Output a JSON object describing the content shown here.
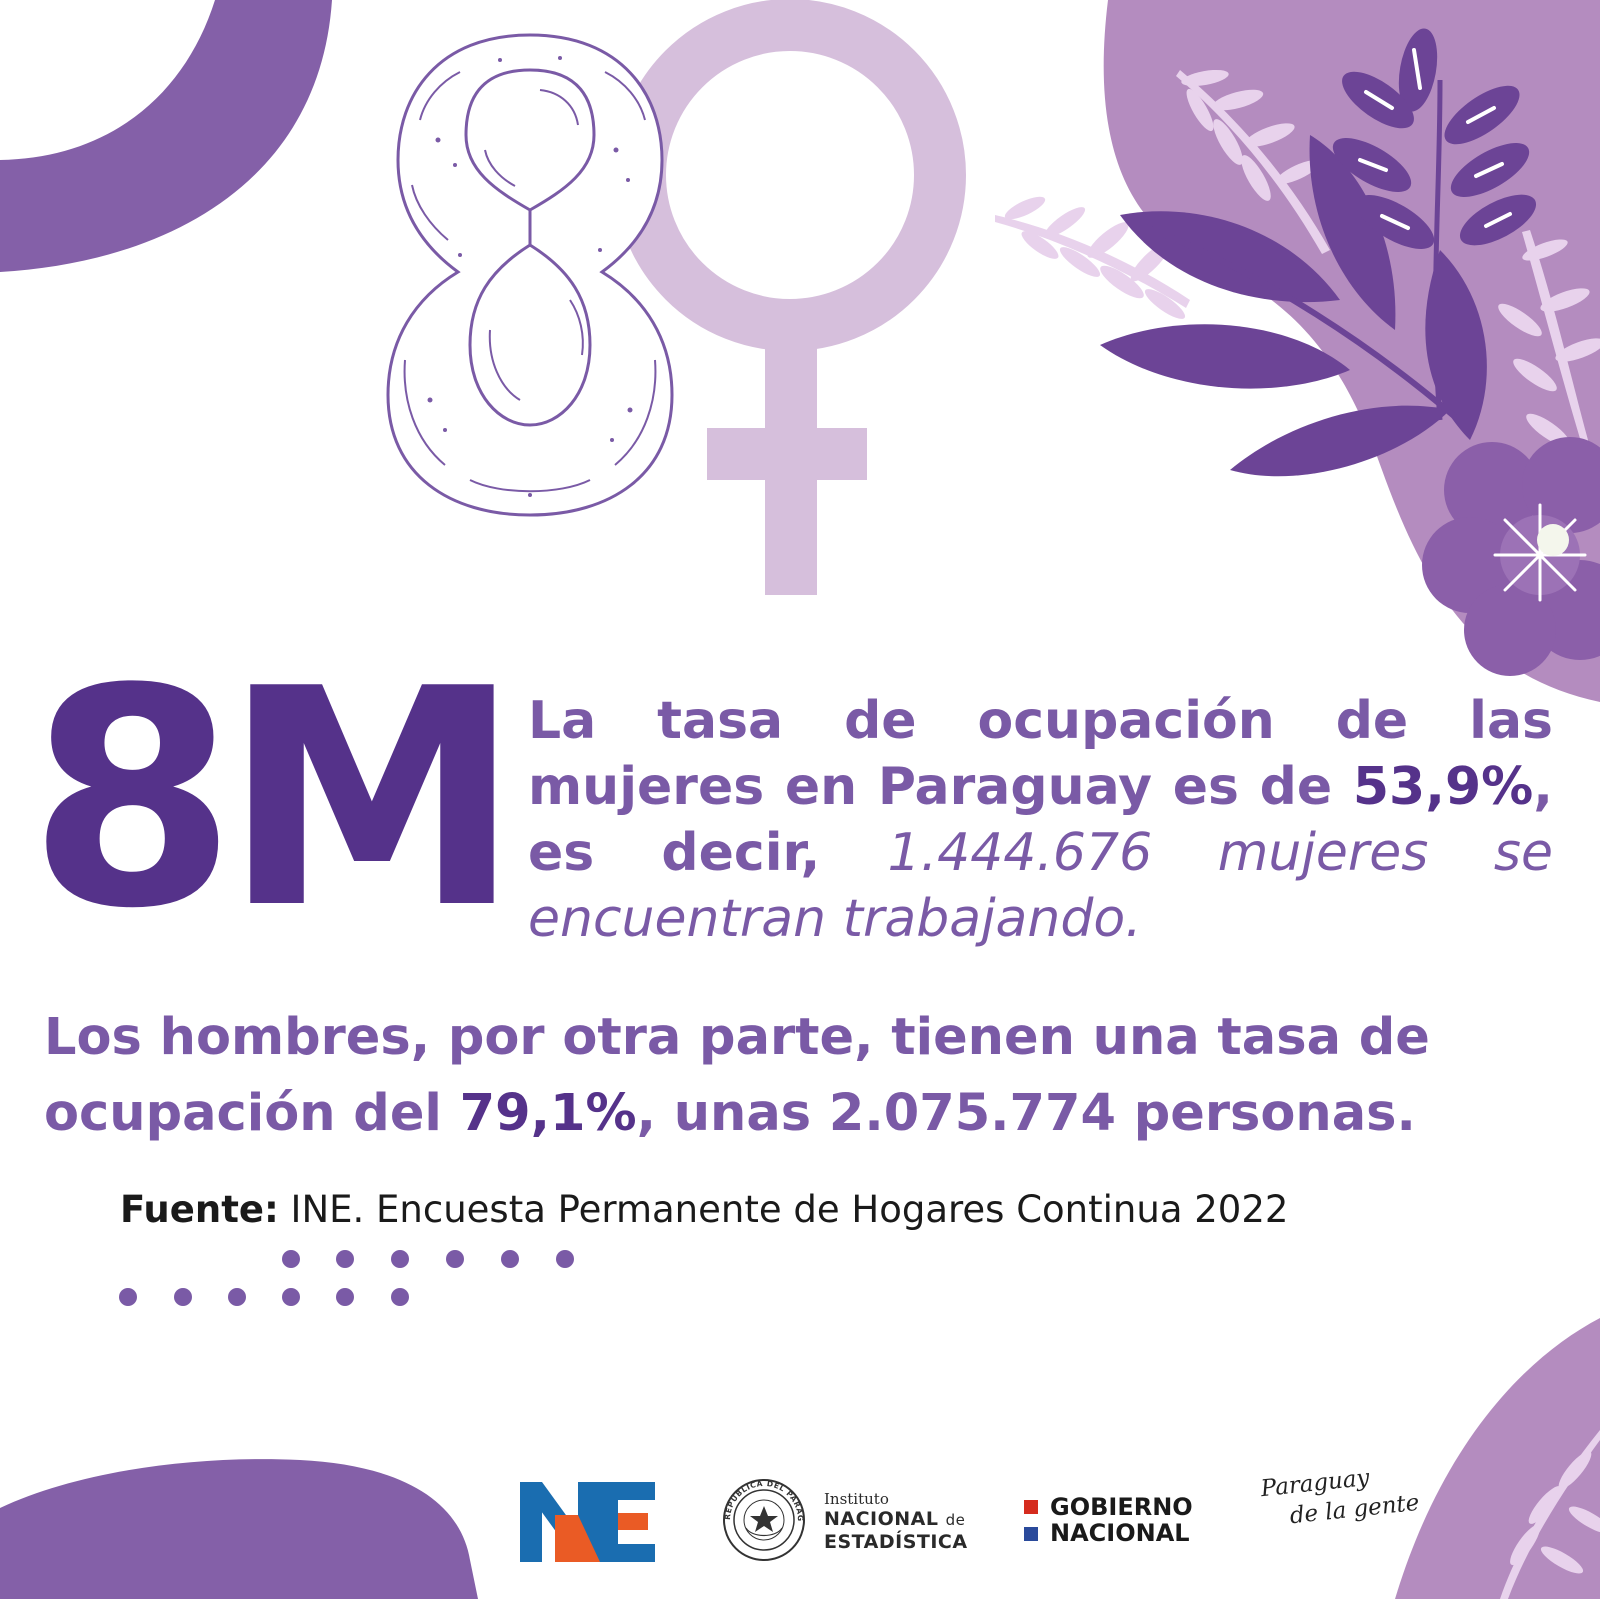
{
  "headline": "8M",
  "paragraph1": {
    "part1": "La tasa de ocupación de las mujeres en Paraguay es de ",
    "rate": "53,9%",
    "part2": ", es decir, ",
    "italic": "1.444.676 mujeres se encuentran trabajando."
  },
  "paragraph2": {
    "part1": "Los hombres, por otra parte, tienen una tasa de ocupación del ",
    "rate": "79,1%",
    "part2": ", unas 2.075.774 personas."
  },
  "source": {
    "label": "Fuente:",
    "text": " INE. Encuesta Permanente de Hogares Continua 2022"
  },
  "footer": {
    "ine_block": {
      "line1": "Instituto",
      "line2": "NACIONAL",
      "line2_suffix": "de",
      "line3": "ESTADÍSTICA"
    },
    "seal_text": "REPÚBLICA DEL PARAGUAY",
    "gobierno": {
      "line1": "GOBIERNO",
      "line2": "NACIONAL"
    },
    "paraguay_gente": {
      "line1": "Paraguay",
      "line2": "de la gente"
    }
  },
  "colors": {
    "dark_purple": "#55328a",
    "mid_purple": "#7a5aa6",
    "light_purple": "#d6bfdc",
    "blob_purple": "#b48cbf",
    "ine_blue": "#1a6db0",
    "ine_orange": "#ea5b25",
    "flag_red": "#d52b1e",
    "flag_blue": "#2a4a9b"
  },
  "icons": {
    "big_eight": "eight-numeral-icon",
    "venus": "venus-symbol-icon",
    "floral": "floral-leaves-icon",
    "seal": "national-seal-icon"
  }
}
